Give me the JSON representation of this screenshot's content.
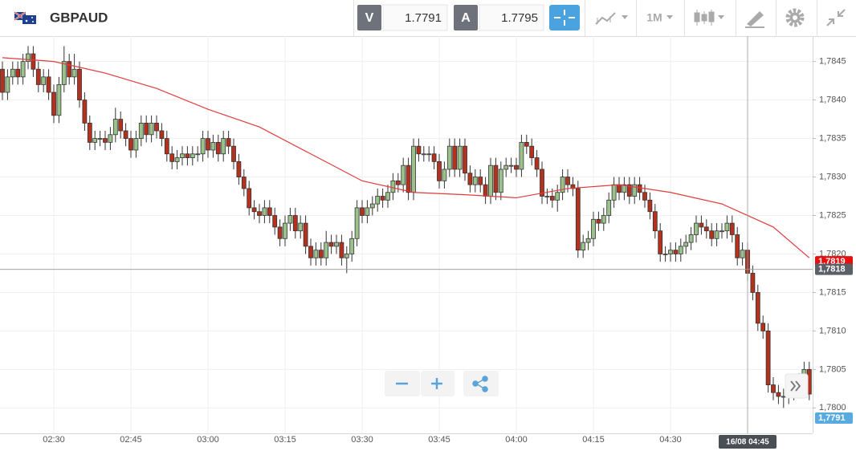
{
  "toolbar": {
    "symbol": "GBPAUD",
    "bid": {
      "label": "V",
      "price": "1.7791"
    },
    "ask": {
      "label": "A",
      "price": "1.7795"
    },
    "timeframe": "1M"
  },
  "chart_data": {
    "type": "candlestick",
    "categories": [
      null,
      null,
      null,
      null,
      null,
      null,
      null,
      null,
      null,
      null,
      "02:30",
      null,
      null,
      null,
      null,
      null,
      null,
      null,
      null,
      null,
      null,
      null,
      null,
      null,
      null,
      "02:45",
      null,
      null,
      null,
      null,
      null,
      null,
      null,
      null,
      null,
      null,
      null,
      null,
      null,
      null,
      "03:00",
      null,
      null,
      null,
      null,
      null,
      null,
      null,
      null,
      null,
      null,
      null,
      null,
      null,
      null,
      "03:15",
      null,
      null,
      null,
      null,
      null,
      null,
      null,
      null,
      null,
      null,
      null,
      null,
      null,
      null,
      "03:30",
      null,
      null,
      null,
      null,
      null,
      null,
      null,
      null,
      null,
      null,
      null,
      null,
      null,
      null,
      "03:45",
      null,
      null,
      null,
      null,
      null,
      null,
      null,
      null,
      null,
      null,
      null,
      null,
      null,
      null,
      "04:00",
      null,
      null,
      null,
      null,
      null,
      null,
      null,
      null,
      null,
      null,
      null,
      null,
      null,
      null,
      "04:15",
      null,
      null,
      null,
      null,
      null,
      null,
      null,
      null,
      null,
      null,
      null,
      null,
      null,
      null,
      "04:30",
      null,
      null,
      null,
      null,
      null,
      null,
      null,
      null,
      null,
      null,
      null,
      null,
      null,
      null,
      null,
      null,
      null,
      null,
      null,
      null,
      null,
      null,
      null,
      null,
      null,
      null,
      null
    ],
    "open": [
      1.7844,
      1.7841,
      1.7843,
      1.7844,
      1.7843,
      1.7845,
      1.7846,
      1.7844,
      1.7842,
      1.7843,
      1.7841,
      1.7838,
      1.7842,
      1.7845,
      1.7843,
      1.7844,
      1.784,
      1.7837,
      1.78345,
      1.7835,
      1.7835,
      1.78345,
      1.78355,
      1.78375,
      1.7836,
      1.7835,
      1.78335,
      1.7835,
      1.7837,
      1.78355,
      1.7837,
      1.7836,
      1.7835,
      1.7833,
      1.7832,
      1.78325,
      1.7833,
      1.78325,
      1.7833,
      1.7833,
      1.7835,
      1.78335,
      1.78345,
      1.7833,
      1.7835,
      1.7834,
      1.7832,
      1.783,
      1.78285,
      1.7826,
      1.78255,
      1.7825,
      1.7826,
      1.7825,
      1.78235,
      1.7822,
      1.7824,
      1.7825,
      1.7823,
      1.7824,
      1.7821,
      1.78195,
      1.78205,
      1.78195,
      1.78215,
      1.7821,
      1.78215,
      1.78195,
      1.782,
      1.7822,
      1.7826,
      1.7825,
      1.7826,
      1.78265,
      1.78275,
      1.7827,
      1.7828,
      1.78295,
      1.7829,
      1.78315,
      1.7828,
      1.7834,
      1.7833,
      1.7833,
      1.7833,
      1.7832,
      1.78295,
      1.7831,
      1.7834,
      1.7831,
      1.7834,
      1.78305,
      1.7829,
      1.783,
      1.7829,
      1.78275,
      1.78315,
      1.7828,
      1.7831,
      1.78315,
      1.78315,
      1.7831,
      1.78345,
      1.7834,
      1.78325,
      1.7831,
      1.78275,
      1.78275,
      1.7827,
      1.7828,
      1.783,
      1.7829,
      1.78285,
      1.78205,
      1.78215,
      1.7822,
      1.78245,
      1.7824,
      1.7825,
      1.7827,
      1.7829,
      1.7828,
      1.7829,
      1.78275,
      1.7829,
      1.7828,
      1.7827,
      1.78255,
      1.7823,
      1.782,
      1.782,
      1.78205,
      1.782,
      1.7821,
      1.78215,
      1.78225,
      1.7824,
      1.78235,
      1.7823,
      1.7822,
      1.7823,
      1.7823,
      1.7824,
      1.78225,
      1.78195,
      1.78205,
      1.78175,
      1.7815,
      1.7811,
      1.781,
      1.7803,
      1.7802,
      1.78015,
      1.78015,
      1.7802,
      1.78025,
      1.78035,
      1.7805
    ],
    "high": [
      1.7845,
      1.7844,
      1.7845,
      1.7845,
      1.7846,
      1.7847,
      1.7847,
      1.7845,
      1.7844,
      1.7844,
      1.7842,
      1.7843,
      1.7847,
      1.7846,
      1.7846,
      1.7845,
      1.7841,
      1.7838,
      1.7836,
      1.7836,
      1.7836,
      1.78365,
      1.7839,
      1.78385,
      1.7837,
      1.7836,
      1.7836,
      1.7838,
      1.7838,
      1.7838,
      1.7838,
      1.7837,
      1.7836,
      1.7834,
      1.78335,
      1.7834,
      1.7834,
      1.7834,
      1.7834,
      1.7836,
      1.7836,
      1.78355,
      1.78355,
      1.7836,
      1.7836,
      1.7835,
      1.7833,
      1.7831,
      1.78295,
      1.7827,
      1.78265,
      1.7827,
      1.7827,
      1.7826,
      1.78245,
      1.7825,
      1.7826,
      1.7826,
      1.7825,
      1.7825,
      1.7822,
      1.78215,
      1.78215,
      1.7823,
      1.78225,
      1.78225,
      1.78225,
      1.7821,
      1.7823,
      1.7827,
      1.7827,
      1.7827,
      1.78275,
      1.78285,
      1.78285,
      1.7829,
      1.78305,
      1.78305,
      1.78325,
      1.78325,
      1.7835,
      1.7835,
      1.7834,
      1.7834,
      1.7834,
      1.7833,
      1.7832,
      1.7835,
      1.7835,
      1.7835,
      1.7835,
      1.78315,
      1.7831,
      1.7831,
      1.783,
      1.78325,
      1.78325,
      1.7832,
      1.78325,
      1.78325,
      1.78325,
      1.78355,
      1.78355,
      1.7835,
      1.78335,
      1.7832,
      1.78285,
      1.78285,
      1.7829,
      1.7831,
      1.7831,
      1.783,
      1.78295,
      1.78225,
      1.7823,
      1.78255,
      1.78255,
      1.7826,
      1.7828,
      1.783,
      1.783,
      1.783,
      1.783,
      1.783,
      1.783,
      1.7829,
      1.7828,
      1.78265,
      1.7824,
      1.7821,
      1.78215,
      1.78215,
      1.7822,
      1.78225,
      1.78235,
      1.7825,
      1.7825,
      1.78245,
      1.7824,
      1.7824,
      1.7824,
      1.7825,
      1.7825,
      1.78235,
      1.78215,
      1.78215,
      1.78185,
      1.7816,
      1.7812,
      1.7811,
      1.7804,
      1.7803,
      1.78025,
      1.7803,
      1.78035,
      1.78045,
      1.7806,
      1.7806
    ],
    "low": [
      1.784,
      1.784,
      1.7842,
      1.7842,
      1.7842,
      1.7844,
      1.7843,
      1.7841,
      1.7841,
      1.784,
      1.7837,
      1.7837,
      1.7841,
      1.7842,
      1.7842,
      1.7839,
      1.7836,
      1.78335,
      1.78335,
      1.7834,
      1.78335,
      1.78335,
      1.78345,
      1.7835,
      1.7834,
      1.78325,
      1.78325,
      1.7834,
      1.78345,
      1.78345,
      1.7835,
      1.7834,
      1.7832,
      1.7831,
      1.7831,
      1.78315,
      1.78315,
      1.78315,
      1.7832,
      1.7832,
      1.78325,
      1.78325,
      1.7832,
      1.7832,
      1.7833,
      1.7831,
      1.7829,
      1.78275,
      1.7825,
      1.78245,
      1.7824,
      1.7824,
      1.7824,
      1.78225,
      1.7821,
      1.7821,
      1.7823,
      1.7822,
      1.7822,
      1.782,
      1.78185,
      1.78185,
      1.78185,
      1.78185,
      1.782,
      1.782,
      1.78185,
      1.78175,
      1.7819,
      1.7821,
      1.7824,
      1.7824,
      1.7825,
      1.78255,
      1.7826,
      1.7826,
      1.7827,
      1.7828,
      1.7828,
      1.7827,
      1.7827,
      1.7832,
      1.7832,
      1.7832,
      1.7831,
      1.78285,
      1.78285,
      1.783,
      1.783,
      1.783,
      1.78295,
      1.7828,
      1.7828,
      1.7828,
      1.78265,
      1.78265,
      1.7827,
      1.7827,
      1.783,
      1.78305,
      1.783,
      1.783,
      1.7833,
      1.78315,
      1.783,
      1.78265,
      1.78265,
      1.7826,
      1.78255,
      1.7827,
      1.7828,
      1.78275,
      1.78195,
      1.78195,
      1.78205,
      1.7821,
      1.7823,
      1.7823,
      1.7824,
      1.7826,
      1.7827,
      1.7827,
      1.78265,
      1.78265,
      1.7827,
      1.7826,
      1.78245,
      1.7822,
      1.7819,
      1.7819,
      1.7819,
      1.7819,
      1.7819,
      1.782,
      1.78205,
      1.78215,
      1.78225,
      1.7822,
      1.7821,
      1.7821,
      1.7822,
      1.7822,
      1.78215,
      1.78185,
      1.78185,
      1.78165,
      1.7814,
      1.781,
      1.7809,
      1.7802,
      1.7801,
      1.78005,
      1.78,
      1.78005,
      1.7801,
      1.78015,
      1.78025,
      1.7801
    ],
    "close": [
      1.7841,
      1.7843,
      1.7844,
      1.7843,
      1.7845,
      1.7846,
      1.7844,
      1.7842,
      1.7843,
      1.7841,
      1.7838,
      1.7842,
      1.7845,
      1.7843,
      1.7844,
      1.784,
      1.7837,
      1.78345,
      1.7835,
      1.7835,
      1.78345,
      1.78355,
      1.78375,
      1.7836,
      1.7835,
      1.78335,
      1.7835,
      1.7837,
      1.78355,
      1.7837,
      1.7836,
      1.7835,
      1.7833,
      1.7832,
      1.78325,
      1.7833,
      1.78325,
      1.7833,
      1.7833,
      1.7835,
      1.78335,
      1.78345,
      1.7833,
      1.7835,
      1.7834,
      1.7832,
      1.783,
      1.78285,
      1.7826,
      1.78255,
      1.7825,
      1.7826,
      1.7825,
      1.78235,
      1.7822,
      1.7824,
      1.7825,
      1.7823,
      1.7824,
      1.7821,
      1.78195,
      1.78205,
      1.78195,
      1.78215,
      1.7821,
      1.78215,
      1.78195,
      1.782,
      1.7822,
      1.7826,
      1.7825,
      1.7826,
      1.78265,
      1.78275,
      1.7827,
      1.7828,
      1.78295,
      1.7829,
      1.78315,
      1.7828,
      1.7834,
      1.7833,
      1.7833,
      1.7833,
      1.7832,
      1.78295,
      1.7831,
      1.7834,
      1.7831,
      1.7834,
      1.78305,
      1.7829,
      1.783,
      1.7829,
      1.78275,
      1.78315,
      1.7828,
      1.7831,
      1.78315,
      1.78315,
      1.7831,
      1.78345,
      1.7834,
      1.78325,
      1.7831,
      1.78275,
      1.78275,
      1.7827,
      1.7828,
      1.783,
      1.7829,
      1.78285,
      1.78205,
      1.78215,
      1.7822,
      1.78245,
      1.7824,
      1.7825,
      1.7827,
      1.7829,
      1.7828,
      1.7829,
      1.78275,
      1.7829,
      1.7828,
      1.7827,
      1.78255,
      1.7823,
      1.782,
      1.782,
      1.78205,
      1.782,
      1.7821,
      1.78215,
      1.78225,
      1.7824,
      1.78235,
      1.7823,
      1.7822,
      1.7823,
      1.7823,
      1.7824,
      1.78225,
      1.78195,
      1.78205,
      1.78175,
      1.7815,
      1.7811,
      1.781,
      1.7803,
      1.7802,
      1.78015,
      1.78015,
      1.7802,
      1.78025,
      1.78035,
      1.7805,
      1.78018
    ],
    "up_color": "#9cc28c",
    "down_color": "#b3311d",
    "moving_average": {
      "color": "#e23b3b",
      "x": [
        0,
        10,
        20,
        30,
        40,
        50,
        60,
        70,
        80,
        90,
        100,
        110,
        120,
        130,
        140,
        150,
        157
      ],
      "values": [
        1.78455,
        1.7845,
        1.78435,
        1.78415,
        1.78388,
        1.78365,
        1.7833,
        1.78295,
        1.7828,
        1.78277,
        1.78273,
        1.78285,
        1.7829,
        1.7828,
        1.78265,
        1.78235,
        1.78195
      ],
      "last": {
        "value": 1.7819,
        "label": "1,7819"
      }
    },
    "ylim": [
      1.77967,
      1.78483
    ],
    "yticks": [
      {
        "value": 1.78,
        "label": "1,7800"
      },
      {
        "value": 1.7805,
        "label": "1,7805"
      },
      {
        "value": 1.781,
        "label": "1,7810"
      },
      {
        "value": 1.7815,
        "label": "1,7815"
      },
      {
        "value": 1.782,
        "label": "1,7820"
      },
      {
        "value": 1.7825,
        "label": "1,7825"
      },
      {
        "value": 1.783,
        "label": "1,7830"
      },
      {
        "value": 1.7835,
        "label": "1,7835"
      },
      {
        "value": 1.784,
        "label": "1,7840"
      },
      {
        "value": 1.7845,
        "label": "1,7845"
      }
    ],
    "grid": true,
    "crosshair": {
      "x": 145,
      "x_label": "16/08 04:45",
      "y": {
        "value": 1.7818,
        "label": "1,7818"
      }
    },
    "current_price": {
      "value": 1.7791,
      "label": "1,7791"
    }
  }
}
